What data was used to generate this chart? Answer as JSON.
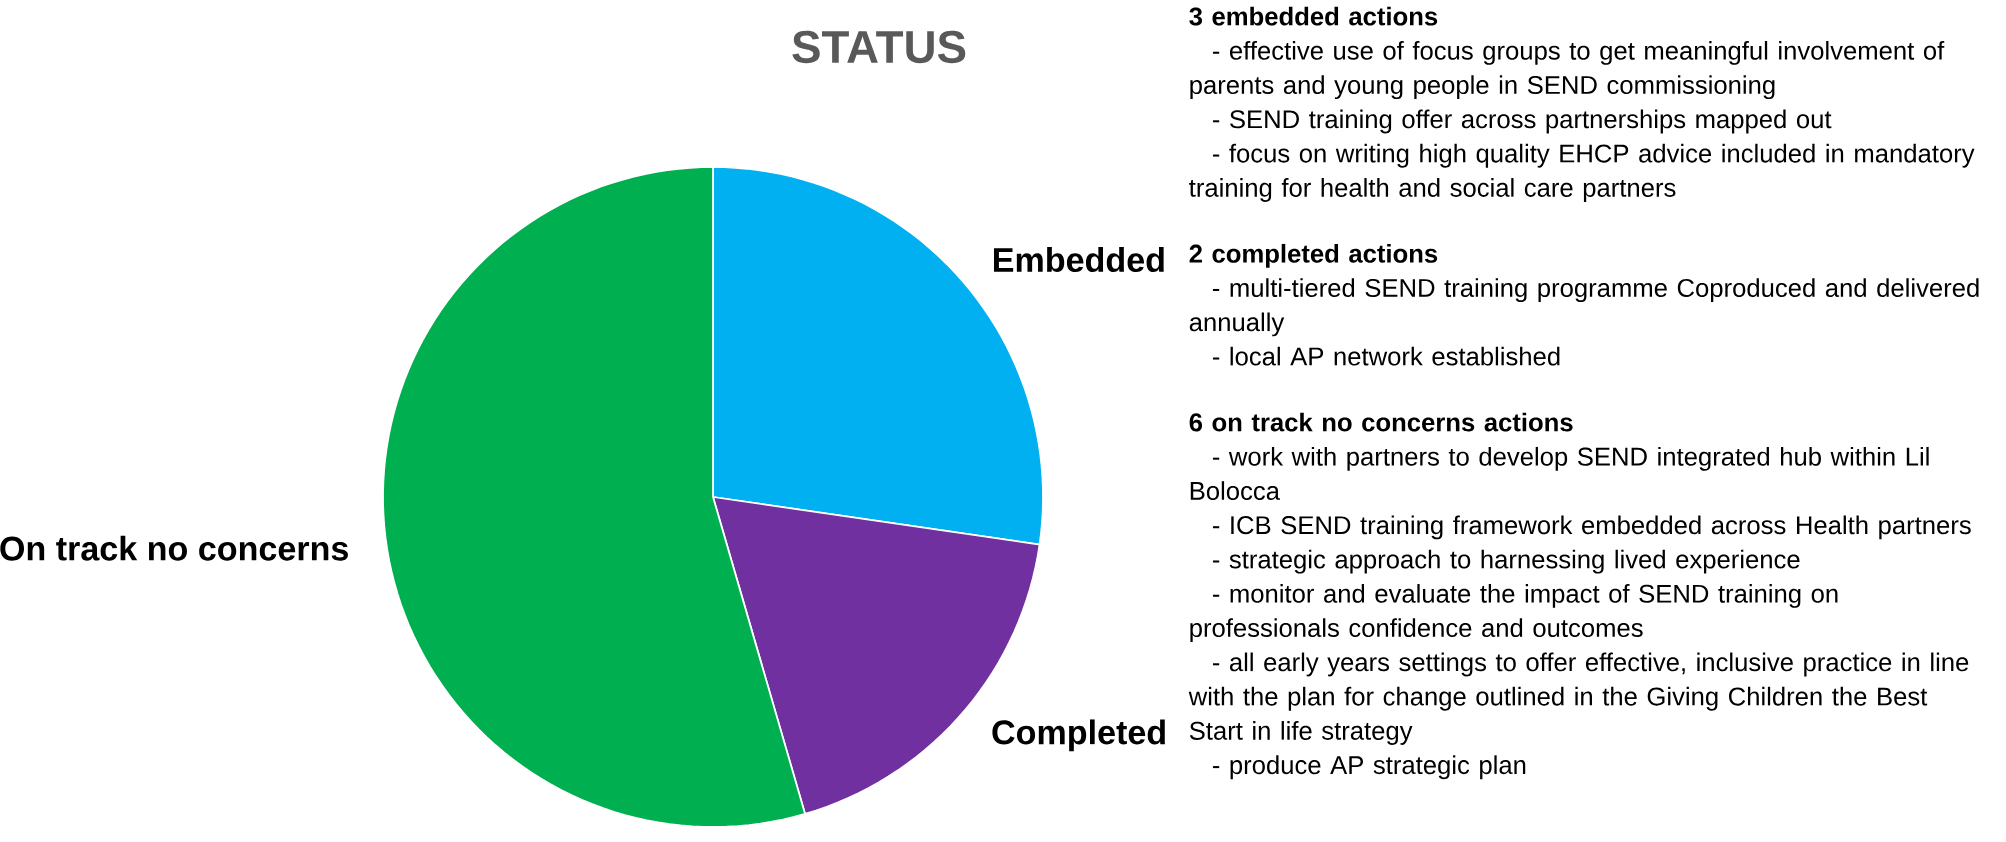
{
  "chart_data": {
    "type": "pie",
    "title": "STATUS",
    "categories": [
      "Embedded",
      "Completed",
      "On track no concerns"
    ],
    "values": [
      27.3,
      18.2,
      54.5
    ],
    "colors": [
      "#00b0f0",
      "#7030a0",
      "#00b050"
    ],
    "annotations": [
      "**3 embedded actions**",
      "- effective use of focus groups to get meaningful involvement of parents and young people in SEND commissioning",
      "- SEND training offer across partnerships mapped out",
      "- focus on writing high quality EHCP advice included in mandatory training for health and social care partners",
      "**2 completed actions**",
      "- multi-tiered SEND training programme Coproduced and delivered annually",
      "- local AP network established",
      "**6 on track no concerns actions**",
      "- work with partners to develop SEND integrated hub within Lil Bolocca",
      "- ICB SEND training framework embedded across Health partners",
      "- strategic approach to harnessing lived experience",
      "- monitor and evaluate the impact of SEND training on professionals confidence and outcomes",
      "- all early years settings to offer effective, inclusive practice in line with the plan for change outlined in the Giving Children the Best Start in life strategy",
      "- produce AP strategic plan"
    ]
  }
}
